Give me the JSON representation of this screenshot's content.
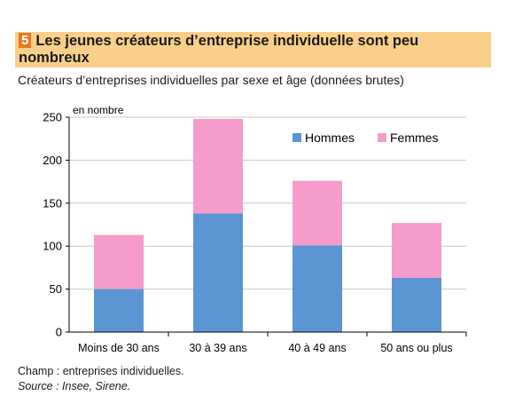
{
  "header": {
    "badge": "5",
    "title": "Les jeunes créateurs d’entreprise individuelle sont peu nombreux",
    "subtitle": "Créateurs d’entreprises individuelles par sexe et âge (données brutes)"
  },
  "footer": {
    "champ": "Champ : entreprises individuelles.",
    "source": "Source : Insee, Sirene."
  },
  "colors": {
    "hommes": "#5b95d3",
    "femmes": "#f59ccb",
    "axis": "#000000",
    "grid": "#c8c8c8"
  },
  "chart_data": {
    "type": "bar",
    "stacked": true,
    "ylabel": "en nombre",
    "ylim": [
      0,
      250
    ],
    "yticks": [
      0,
      50,
      100,
      150,
      200,
      250
    ],
    "grid": true,
    "legend": "top-right",
    "categories": [
      "Moins de 30 ans",
      "30 à 39 ans",
      "40 à 49 ans",
      "50 ans ou plus"
    ],
    "series": [
      {
        "name": "Hommes",
        "values": [
          50,
          138,
          101,
          63
        ]
      },
      {
        "name": "Femmes",
        "values": [
          63,
          110,
          75,
          64
        ]
      }
    ]
  }
}
